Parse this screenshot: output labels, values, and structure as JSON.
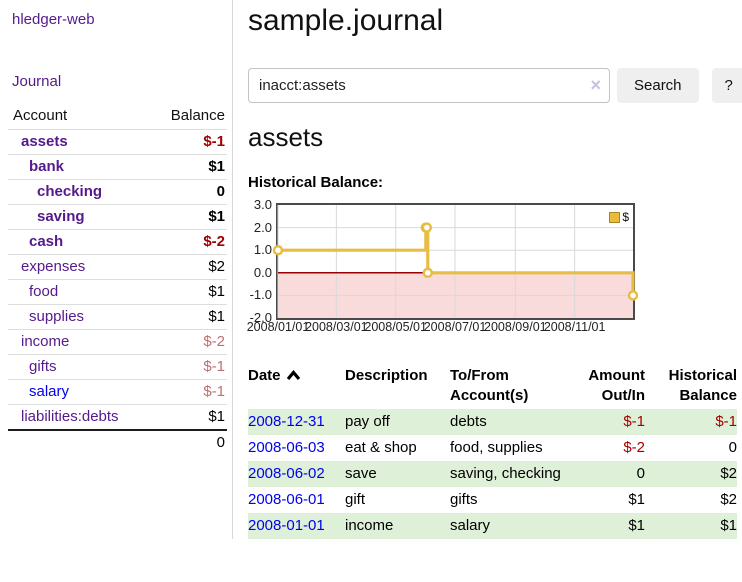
{
  "colors": {
    "link_purple": "#551A8B",
    "link_blue": "#0000EE",
    "negative_strong": "#A40000",
    "negative_dim": "#BE7070",
    "row_stripe_green": "#dff0d8",
    "chart_line_gold": "#E8BD45"
  },
  "sidebar": {
    "brand": "hledger-web",
    "nav_journal": "Journal",
    "accounts_table": {
      "headers": [
        "Account",
        "Balance"
      ],
      "rows": [
        {
          "name": "assets",
          "depth": 0,
          "balance": "$-1",
          "bold": true,
          "negative": "strong",
          "link": "purple"
        },
        {
          "name": "bank",
          "depth": 1,
          "balance": "$1",
          "bold": true,
          "negative": "none",
          "link": "purple"
        },
        {
          "name": "checking",
          "depth": 2,
          "balance": "0",
          "bold": true,
          "negative": "none",
          "link": "purple"
        },
        {
          "name": "saving",
          "depth": 2,
          "balance": "$1",
          "bold": true,
          "negative": "none",
          "link": "purple"
        },
        {
          "name": "cash",
          "depth": 1,
          "balance": "$-2",
          "bold": true,
          "negative": "strong",
          "link": "purple"
        },
        {
          "name": "expenses",
          "depth": 0,
          "balance": "$2",
          "bold": false,
          "negative": "none",
          "link": "purple"
        },
        {
          "name": "food",
          "depth": 1,
          "balance": "$1",
          "bold": false,
          "negative": "none",
          "link": "purple"
        },
        {
          "name": "supplies",
          "depth": 1,
          "balance": "$1",
          "bold": false,
          "negative": "none",
          "link": "purple"
        },
        {
          "name": "income",
          "depth": 0,
          "balance": "$-2",
          "bold": false,
          "negative": "dim",
          "link": "purple"
        },
        {
          "name": "gifts",
          "depth": 1,
          "balance": "$-1",
          "bold": false,
          "negative": "dim",
          "link": "purple"
        },
        {
          "name": "salary",
          "depth": 1,
          "balance": "$-1",
          "bold": false,
          "negative": "dim",
          "link": "blue"
        },
        {
          "name": "liabilities:debts",
          "depth": 0,
          "balance": "$1",
          "bold": false,
          "negative": "none",
          "link": "purple"
        }
      ],
      "total": "0"
    }
  },
  "header": {
    "title": "sample.journal"
  },
  "search": {
    "value": "inacct:assets",
    "clear_icon": "×",
    "button_label": "Search",
    "help_label": "?"
  },
  "account_page": {
    "heading": "assets",
    "chart_label": "Historical Balance:"
  },
  "chart_data": {
    "type": "line",
    "step": true,
    "series": [
      {
        "name": "$",
        "color": "#E8BD45",
        "points": [
          {
            "date": "2008-01-01",
            "value": 1
          },
          {
            "date": "2008-06-01",
            "value": 2
          },
          {
            "date": "2008-06-02",
            "value": 2
          },
          {
            "date": "2008-06-03",
            "value": 0
          },
          {
            "date": "2008-12-31",
            "value": -1
          }
        ]
      }
    ],
    "x_range": [
      "2008-01-01",
      "2008-12-31"
    ],
    "ylim": [
      -2,
      3
    ],
    "y_ticks": [
      "3.0",
      "2.0",
      "1.0",
      "0.0",
      "-1.0",
      "-2.0"
    ],
    "x_ticks": [
      "2008/01/01",
      "2008/03/01",
      "2008/05/01",
      "2008/07/01",
      "2008/09/01",
      "2008/11/01"
    ],
    "grid": true,
    "legend_position": "top-right",
    "zero_line_color": "#990000",
    "negative_region_color": "#fadbdb",
    "grid_color": "#d9d9d9"
  },
  "register_table": {
    "headers": [
      {
        "label": "Date",
        "align": "left",
        "sort_icon": "chevron-up-icon"
      },
      {
        "label": "Description",
        "align": "left"
      },
      {
        "label": "To/From Account(s)",
        "align": "left"
      },
      {
        "label": "Amount Out/In",
        "align": "right"
      },
      {
        "label": "Historical Balance",
        "align": "right"
      }
    ],
    "rows": [
      {
        "date": "2008-12-31",
        "description": "pay off",
        "accounts": "debts",
        "amount": "$-1",
        "amount_negative": true,
        "balance": "$-1",
        "balance_negative": true
      },
      {
        "date": "2008-06-03",
        "description": "eat & shop",
        "accounts": "food, supplies",
        "amount": "$-2",
        "amount_negative": true,
        "balance": "0",
        "balance_negative": false
      },
      {
        "date": "2008-06-02",
        "description": "save",
        "accounts": "saving, checking",
        "amount": "0",
        "amount_negative": false,
        "balance": "$2",
        "balance_negative": false
      },
      {
        "date": "2008-06-01",
        "description": "gift",
        "accounts": "gifts",
        "amount": "$1",
        "amount_negative": false,
        "balance": "$2",
        "balance_negative": false
      },
      {
        "date": "2008-01-01",
        "description": "income",
        "accounts": "salary",
        "amount": "$1",
        "amount_negative": false,
        "balance": "$1",
        "balance_negative": false
      }
    ]
  }
}
